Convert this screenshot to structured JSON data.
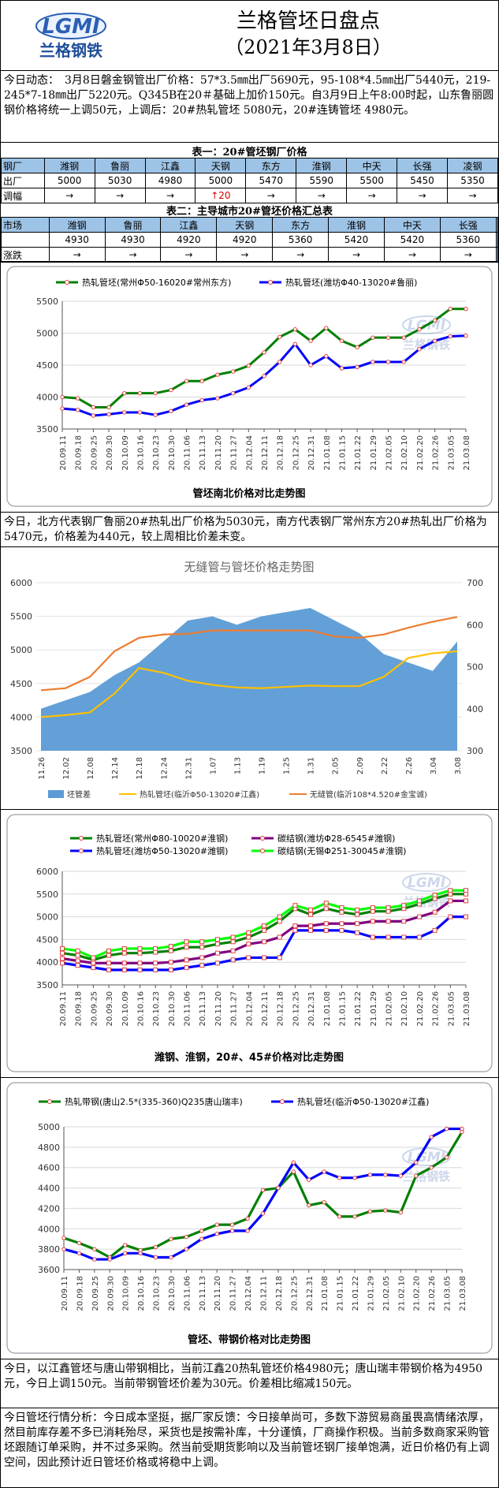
{
  "header": {
    "logo_text": "LGMI",
    "logo_sub": "兰格钢铁",
    "title": "兰格管坯日盘点",
    "date": "（2021年3月8日）"
  },
  "news": "今日动态：　3月8日磐金钢管出厂价格：57*3.5㎜出厂5690元，95-108*4.5㎜出厂5440元，219-245*7-18㎜出厂5220元。Q345B在20＃基础上加价150元。自3月9日上午8:00时起，山东鲁丽圆钢价格将统一上调50元，上调后：20#热轧管坯 5080元，20#连铸管坯 4980元。",
  "table1": {
    "caption": "表一：20#管坯钢厂价格",
    "corner": "钢厂",
    "mills": [
      "潍钢",
      "鲁丽",
      "江鑫",
      "天钢",
      "东方",
      "淮钢",
      "中天",
      "长强",
      "凌钢"
    ],
    "row1_label": "出厂",
    "prices": [
      "5000",
      "5030",
      "4980",
      "5000",
      "5470",
      "5590",
      "5500",
      "5450",
      "5350"
    ],
    "row2_label": "调幅",
    "changes": [
      "→",
      "→",
      "→",
      "↑20",
      "→",
      "→",
      "→",
      "→",
      "→"
    ]
  },
  "table2": {
    "caption": "表二：主导城市20#管坯价格汇总表",
    "corner": "市场",
    "markets": [
      "潍钢",
      "鲁丽",
      "江鑫",
      "天钢",
      "东方",
      "淮钢",
      "中天",
      "长强"
    ],
    "row1_label": "",
    "prices": [
      "4930",
      "4930",
      "4920",
      "4920",
      "5360",
      "5420",
      "5420",
      "5360"
    ],
    "row2_label": "涨跌",
    "changes": [
      "→",
      "→",
      "→",
      "→",
      "→",
      "→",
      "→",
      "→"
    ]
  },
  "chart_data": [
    {
      "type": "line",
      "title": "管坯南北价格对比走势图",
      "xlabel": "",
      "ylabel": "",
      "ylim": [
        3500,
        5500
      ],
      "x": [
        "20.09.11",
        "20.09.18",
        "20.09.25",
        "20.09.30",
        "20.10.09",
        "20.10.16",
        "20.10.23",
        "20.10.30",
        "20.11.06",
        "20.11.13",
        "20.11.20",
        "20.11.27",
        "20.12.04",
        "20.12.11",
        "20.12.18",
        "20.12.25",
        "20.12.31",
        "21.01.08",
        "21.01.15",
        "21.01.22",
        "21.01.29",
        "21.02.05",
        "21.02.10",
        "21.02.20",
        "21.02.26",
        "21.03.05",
        "21.03.08"
      ],
      "series": [
        {
          "name": "热轧管坯(常州Φ50-16020#常州东方)",
          "color": "#008000",
          "values": [
            4000,
            3980,
            3840,
            3840,
            4060,
            4060,
            4060,
            4110,
            4250,
            4250,
            4350,
            4400,
            4490,
            4700,
            4940,
            5060,
            4880,
            5080,
            4880,
            4780,
            4930,
            4930,
            4930,
            5060,
            5200,
            5380,
            5380
          ]
        },
        {
          "name": "热轧管坯(潍坊Φ40-13020#鲁丽)",
          "color": "#0000ff",
          "values": [
            3820,
            3800,
            3710,
            3730,
            3760,
            3760,
            3720,
            3780,
            3880,
            3950,
            3980,
            4060,
            4150,
            4330,
            4550,
            4830,
            4500,
            4640,
            4450,
            4470,
            4550,
            4550,
            4550,
            4750,
            4880,
            4950,
            4960
          ]
        }
      ]
    },
    {
      "type": "area",
      "title": "无缝管与管坯价格走势图",
      "xlabel": "",
      "ylabel": "",
      "ylim": [
        3500,
        6000
      ],
      "y2lim": [
        300,
        700
      ],
      "x": [
        "11.26",
        "12.02",
        "12.08",
        "12.14",
        "12.18",
        "12.24",
        "12.31",
        "1.07",
        "1.13",
        "1.19",
        "1.25",
        "1.31",
        "2.05",
        "2.09",
        "2.22",
        "2.26",
        "3.04",
        "3.08"
      ],
      "series": [
        {
          "name": "坯管差",
          "axis": "y2",
          "color": "#5b9bd5",
          "values": [
            400,
            420,
            440,
            480,
            510,
            560,
            610,
            620,
            600,
            620,
            630,
            640,
            610,
            580,
            530,
            510,
            490,
            560
          ]
        },
        {
          "name": "热轧管坯(临沂Φ50-13020#江鑫)",
          "axis": "y",
          "color": "#ffc000",
          "values": [
            4000,
            4030,
            4070,
            4350,
            4730,
            4660,
            4540,
            4480,
            4440,
            4430,
            4450,
            4470,
            4460,
            4460,
            4600,
            4880,
            4950,
            4980
          ]
        },
        {
          "name": "无缝管(临沂108*4.520#金宝诚)",
          "axis": "y",
          "color": "#ed7d31",
          "values": [
            4400,
            4430,
            4600,
            4980,
            5180,
            5230,
            5240,
            5290,
            5290,
            5290,
            5290,
            5290,
            5200,
            5180,
            5230,
            5330,
            5420,
            5490
          ]
        }
      ]
    },
    {
      "type": "line",
      "title": "潍钢、淮钢，20#、45#价格对比走势图",
      "xlabel": "",
      "ylabel": "",
      "ylim": [
        3500,
        6000
      ],
      "x": [
        "20.09.11",
        "20.09.18",
        "20.09.25",
        "20.09.30",
        "20.10.09",
        "20.10.16",
        "20.10.23",
        "20.10.30",
        "20.11.06",
        "20.11.13",
        "20.11.20",
        "20.11.27",
        "20.12.04",
        "20.12.11",
        "20.12.18",
        "20.12.25",
        "20.12.31",
        "21.01.08",
        "21.01.15",
        "21.01.22",
        "21.01.29",
        "21.02.05",
        "21.02.10",
        "21.02.20",
        "21.02.26",
        "21.03.05",
        "21.03.08"
      ],
      "series": [
        {
          "name": "热轧管坯(常州Φ80-10020#淮钢)",
          "color": "#008000",
          "values": [
            4200,
            4150,
            4050,
            4150,
            4200,
            4200,
            4220,
            4250,
            4330,
            4330,
            4400,
            4450,
            4550,
            4700,
            4900,
            5180,
            5050,
            5180,
            5100,
            5050,
            5120,
            5120,
            5180,
            5280,
            5400,
            5500,
            5500
          ]
        },
        {
          "name": "热轧管坯(潍坊Φ50-13020#潍钢)",
          "color": "#0000ff",
          "values": [
            3980,
            3930,
            3880,
            3830,
            3830,
            3830,
            3830,
            3830,
            3880,
            3930,
            3980,
            4050,
            4100,
            4100,
            4100,
            4700,
            4700,
            4700,
            4700,
            4650,
            4550,
            4550,
            4550,
            4550,
            4700,
            5000,
            5000
          ]
        },
        {
          "name": "碳结钢(潍坊Φ28-6545#潍钢)",
          "color": "#800080",
          "values": [
            4080,
            4030,
            3980,
            3980,
            3980,
            3980,
            3980,
            4000,
            4050,
            4100,
            4200,
            4250,
            4400,
            4450,
            4550,
            4800,
            4800,
            4850,
            4850,
            4850,
            4900,
            4900,
            4900,
            5000,
            5100,
            5350,
            5350
          ]
        },
        {
          "name": "碳结钢(无锡Φ251-30045#淮钢)",
          "color": "#00ff00",
          "values": [
            4300,
            4250,
            4100,
            4250,
            4300,
            4300,
            4300,
            4350,
            4450,
            4450,
            4500,
            4550,
            4650,
            4800,
            5000,
            5250,
            5150,
            5300,
            5200,
            5150,
            5200,
            5200,
            5250,
            5350,
            5480,
            5580,
            5580
          ]
        }
      ]
    },
    {
      "type": "line",
      "title": "管坯、带钢价格对比走势图",
      "xlabel": "",
      "ylabel": "",
      "ylim": [
        3600,
        5000
      ],
      "x": [
        "20.09.11",
        "20.09.18",
        "20.09.25",
        "20.09.30",
        "20.10.09",
        "20.10.16",
        "20.10.23",
        "20.10.30",
        "20.11.06",
        "20.11.13",
        "20.11.20",
        "20.11.27",
        "20.12.04",
        "20.12.11",
        "20.12.18",
        "20.12.25",
        "20.12.31",
        "21.01.08",
        "21.01.15",
        "21.01.22",
        "21.01.29",
        "21.02.05",
        "21.02.10",
        "21.02.20",
        "21.02.26",
        "21.03.05",
        "21.03.08"
      ],
      "series": [
        {
          "name": "热轧带钢(唐山2.5*(335-360)Q235唐山瑞丰)",
          "color": "#008000",
          "values": [
            3910,
            3860,
            3800,
            3720,
            3840,
            3790,
            3820,
            3900,
            3920,
            3980,
            4040,
            4040,
            4100,
            4380,
            4400,
            4560,
            4230,
            4260,
            4120,
            4120,
            4170,
            4180,
            4160,
            4520,
            4600,
            4700,
            4950
          ]
        },
        {
          "name": "热轧管坯(临沂Φ50-13020#江鑫)",
          "color": "#0000ff",
          "values": [
            3800,
            3760,
            3700,
            3700,
            3760,
            3760,
            3720,
            3720,
            3800,
            3900,
            3950,
            3980,
            3980,
            4150,
            4400,
            4650,
            4480,
            4560,
            4500,
            4500,
            4530,
            4530,
            4520,
            4650,
            4900,
            4980,
            4980
          ]
        }
      ]
    }
  ],
  "notes": {
    "n1": "今日，北方代表钢厂鲁丽20#热轧出厂价格为5030元，南方代表钢厂常州东方20#热轧出厂价格为5470元，价格差为440元，较上周相比价差未变。",
    "n2": "今日，以江鑫管坯与唐山带钢相比，当前江鑫20热轧管坯价格4980元；唐山瑞丰带钢价格为4950元，今日上调150元。当前带钢管坯价差为30元。价差相比缩减150元。",
    "n3": "今日管坯行情分析：今日成本坚挺，据厂家反馈：今日接单尚可，多数下游贸易商虽畏高情绪浓厚，然目前库存差不多已消耗殆尽，采货也是按需补库，十分谨慎，厂商操作积极。当前多数商家采购管坯跟随订单采购，并不过多采购。然当前受期货影响以及当前管坯钢厂接单饱满，近日价格仍有上调空间，因此预计近日管坯价格或将稳中上调。"
  }
}
